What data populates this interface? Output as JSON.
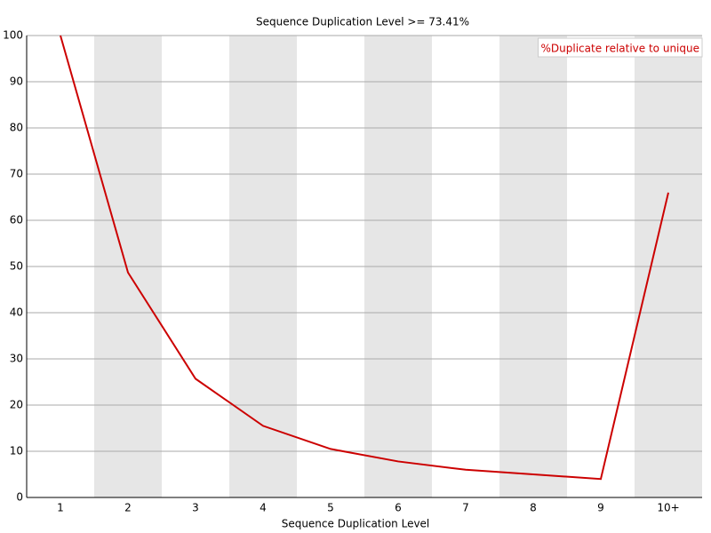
{
  "chart_data": {
    "type": "line",
    "title": "Sequence Duplication Level >= 73.41%",
    "x_label": "Sequence Duplication Level",
    "categories": [
      "1",
      "2",
      "3",
      "4",
      "5",
      "6",
      "7",
      "8",
      "9",
      "10+"
    ],
    "series": [
      {
        "name": "%Duplicate relative to unique",
        "color": "#cc0000",
        "values": [
          100,
          48.7,
          25.7,
          15.5,
          10.5,
          7.8,
          6.0,
          5.0,
          4.0,
          66.0
        ]
      }
    ],
    "ylim": [
      0,
      100
    ],
    "yticks": [
      0,
      10,
      20,
      30,
      40,
      50,
      60,
      70,
      80,
      90,
      100
    ],
    "grid": true,
    "legend": "top-right"
  }
}
